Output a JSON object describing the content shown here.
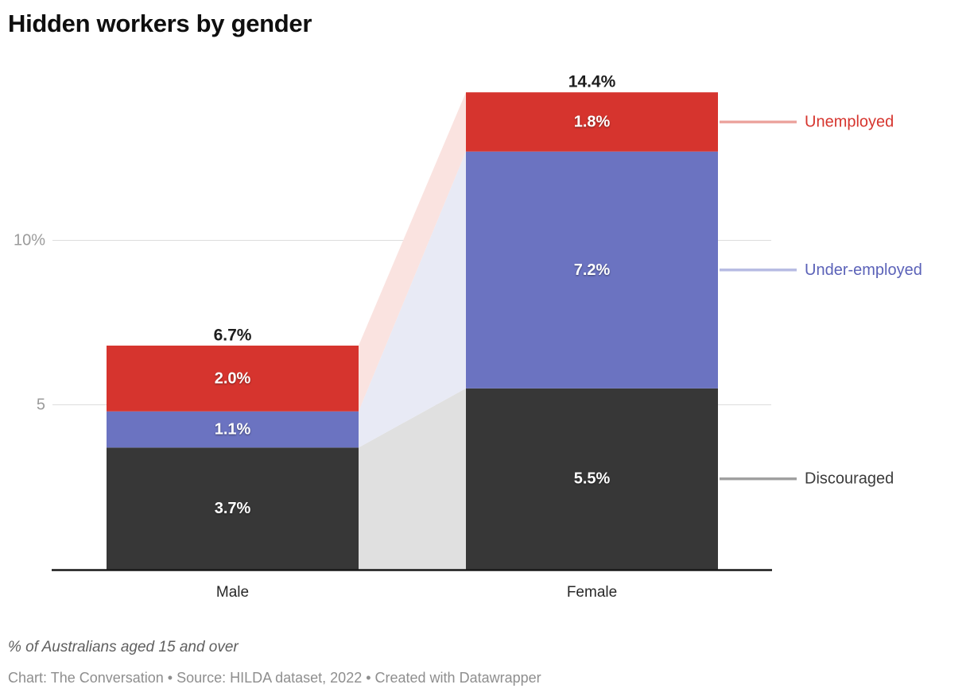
{
  "header": {
    "title": "Hidden workers by gender"
  },
  "chart_data": {
    "type": "bar",
    "stacked": true,
    "orientation": "vertical",
    "categories": [
      "Male",
      "Female"
    ],
    "series": [
      {
        "name": "Discouraged",
        "values": [
          3.7,
          5.5
        ],
        "value_labels": [
          "3.7%",
          "5.5%"
        ],
        "color": "#373737",
        "connector_color": "#e0e0e0",
        "annotation_label": "Discouraged",
        "annotation_text_color": "#3c3c3c",
        "leader_line_color": "#a0a0a0"
      },
      {
        "name": "Under-employed",
        "values": [
          1.1,
          7.2
        ],
        "value_labels": [
          "1.1%",
          "7.2%"
        ],
        "color": "#6b73c1",
        "connector_color": "#e8eaf5",
        "annotation_label": "Under-employed",
        "annotation_text_color": "#5b62b8",
        "leader_line_color": "#b8bce3"
      },
      {
        "name": "Unemployed",
        "values": [
          2.0,
          1.8
        ],
        "value_labels": [
          "2.0%",
          "1.8%"
        ],
        "color": "#d6342e",
        "connector_color": "#fae3e0",
        "annotation_label": "Unemployed",
        "annotation_text_color": "#d6352e",
        "leader_line_color": "#eca59f"
      }
    ],
    "total_labels": [
      "6.7%",
      "14.4%"
    ],
    "y_ticks": [
      {
        "value": 5,
        "label": "5"
      },
      {
        "value": 10,
        "label": "10%"
      }
    ],
    "ylim": [
      0,
      14.5
    ],
    "grid": true,
    "gridline_color": "#dddddd",
    "axis_line_color": "#181818",
    "tick_label_color": "#9b9b9b",
    "category_label_color": "#282828",
    "total_label_color": "#1d1d1d",
    "segment_label_color": "#ffffff",
    "legend_position": "right-annotations"
  },
  "footer": {
    "axis_note": "% of Australians aged 15 and over",
    "byline": "Chart: The Conversation • Source: HILDA dataset, 2022 • Created with Datawrapper"
  }
}
